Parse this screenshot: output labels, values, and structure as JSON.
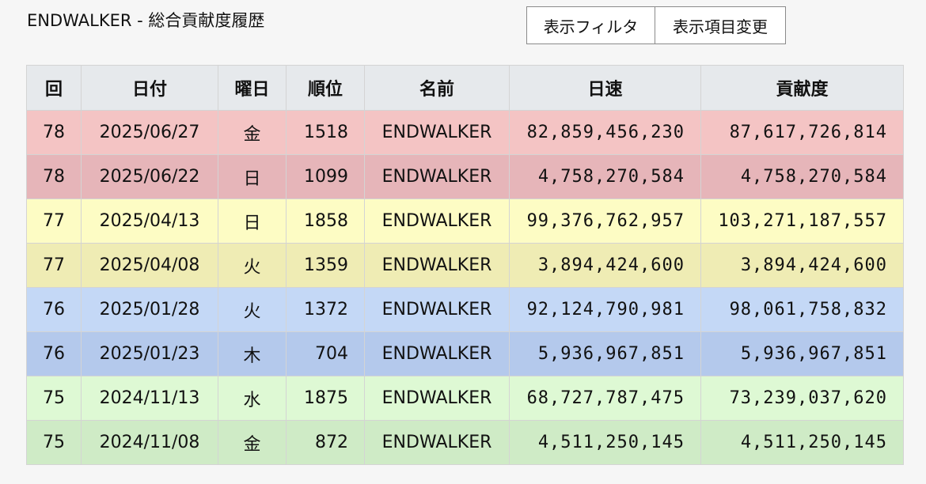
{
  "header": {
    "title": "ENDWALKER - 総合貢献度履歴"
  },
  "toolbar": {
    "filter_label": "表示フィルタ",
    "columns_label": "表示項目変更"
  },
  "table": {
    "columns": [
      "回",
      "日付",
      "曜日",
      "順位",
      "名前",
      "日速",
      "貢献度"
    ],
    "rows": [
      {
        "round": "78",
        "date": "2025/06/27",
        "day": "金",
        "rank": "1518",
        "name": "ENDWALKER",
        "speed": "82,859,456,230",
        "contribution": "87,617,726,814",
        "color": "#f4c4c4"
      },
      {
        "round": "78",
        "date": "2025/06/22",
        "day": "日",
        "rank": "1099",
        "name": "ENDWALKER",
        "speed": "4,758,270,584",
        "contribution": "4,758,270,584",
        "color": "#e6b5b9"
      },
      {
        "round": "77",
        "date": "2025/04/13",
        "day": "日",
        "rank": "1858",
        "name": "ENDWALKER",
        "speed": "99,376,762,957",
        "contribution": "103,271,187,557",
        "color": "#fdfcc4"
      },
      {
        "round": "77",
        "date": "2025/04/08",
        "day": "火",
        "rank": "1359",
        "name": "ENDWALKER",
        "speed": "3,894,424,600",
        "contribution": "3,894,424,600",
        "color": "#efecb4"
      },
      {
        "round": "76",
        "date": "2025/01/28",
        "day": "火",
        "rank": "1372",
        "name": "ENDWALKER",
        "speed": "92,124,790,981",
        "contribution": "98,061,758,832",
        "color": "#c4d8f6"
      },
      {
        "round": "76",
        "date": "2025/01/23",
        "day": "木",
        "rank": "704",
        "name": "ENDWALKER",
        "speed": "5,936,967,851",
        "contribution": "5,936,967,851",
        "color": "#b4c9ec"
      },
      {
        "round": "75",
        "date": "2024/11/13",
        "day": "水",
        "rank": "1875",
        "name": "ENDWALKER",
        "speed": "68,727,787,475",
        "contribution": "73,239,037,620",
        "color": "#def9d4"
      },
      {
        "round": "75",
        "date": "2024/11/08",
        "day": "金",
        "rank": "872",
        "name": "ENDWALKER",
        "speed": "4,511,250,145",
        "contribution": "4,511,250,145",
        "color": "#cfebc6"
      }
    ]
  }
}
